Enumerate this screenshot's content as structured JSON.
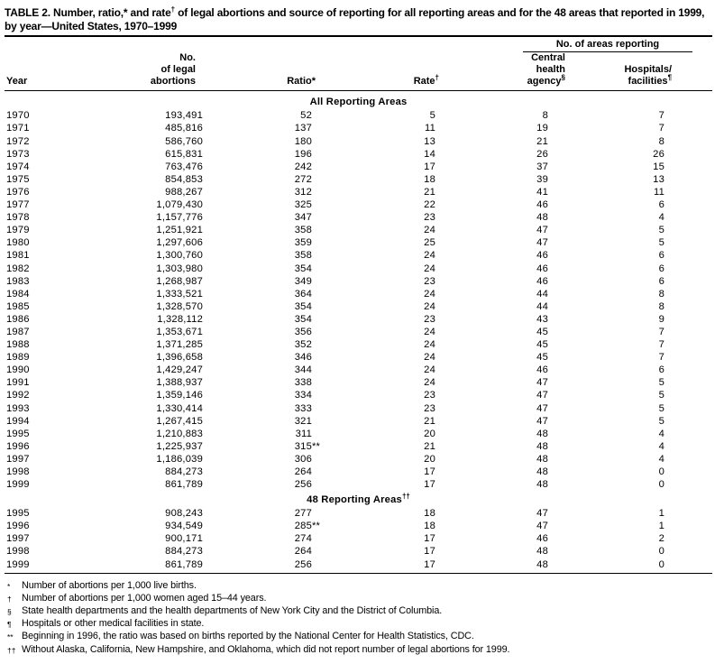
{
  "title": {
    "prefix": "TABLE 2. Number, ratio,* and rate",
    "sup": "†",
    "rest": " of legal abortions and source of reporting for all reporting areas and for the 48 areas that reported in 1999, by year—United States, 1970–1999"
  },
  "headers": {
    "group": "No. of areas reporting",
    "year": "Year",
    "abortions": "No.\nof legal\nabortions",
    "ratio": "Ratio*",
    "rate": "Rate",
    "rate_sup": "†",
    "central": "Central\nhealth\nagency",
    "central_sup": "§",
    "hospitals": "Hospitals/\nfacilities",
    "hospitals_sup": "¶"
  },
  "sections": [
    {
      "title": "All Reporting Areas",
      "sup": "",
      "rows": [
        {
          "year": "1970",
          "abortions": "193,491",
          "ratio": "52",
          "ratio_sup": "",
          "rate": "5",
          "central": "8",
          "hospitals": "7"
        },
        {
          "year": "1971",
          "abortions": "485,816",
          "ratio": "137",
          "ratio_sup": "",
          "rate": "11",
          "central": "19",
          "hospitals": "7"
        },
        {
          "year": "1972",
          "abortions": "586,760",
          "ratio": "180",
          "ratio_sup": "",
          "rate": "13",
          "central": "21",
          "hospitals": "8"
        },
        {
          "year": "1973",
          "abortions": "615,831",
          "ratio": "196",
          "ratio_sup": "",
          "rate": "14",
          "central": "26",
          "hospitals": "26"
        },
        {
          "year": "1974",
          "abortions": "763,476",
          "ratio": "242",
          "ratio_sup": "",
          "rate": "17",
          "central": "37",
          "hospitals": "15"
        },
        {
          "year": "1975",
          "abortions": "854,853",
          "ratio": "272",
          "ratio_sup": "",
          "rate": "18",
          "central": "39",
          "hospitals": "13"
        },
        {
          "year": "1976",
          "abortions": "988,267",
          "ratio": "312",
          "ratio_sup": "",
          "rate": "21",
          "central": "41",
          "hospitals": "11"
        },
        {
          "year": "1977",
          "abortions": "1,079,430",
          "ratio": "325",
          "ratio_sup": "",
          "rate": "22",
          "central": "46",
          "hospitals": "6"
        },
        {
          "year": "1978",
          "abortions": "1,157,776",
          "ratio": "347",
          "ratio_sup": "",
          "rate": "23",
          "central": "48",
          "hospitals": "4"
        },
        {
          "year": "1979",
          "abortions": "1,251,921",
          "ratio": "358",
          "ratio_sup": "",
          "rate": "24",
          "central": "47",
          "hospitals": "5"
        },
        {
          "year": "1980",
          "abortions": "1,297,606",
          "ratio": "359",
          "ratio_sup": "",
          "rate": "25",
          "central": "47",
          "hospitals": "5"
        },
        {
          "year": "1981",
          "abortions": "1,300,760",
          "ratio": "358",
          "ratio_sup": "",
          "rate": "24",
          "central": "46",
          "hospitals": "6"
        },
        {
          "year": "1982",
          "abortions": "1,303,980",
          "ratio": "354",
          "ratio_sup": "",
          "rate": "24",
          "central": "46",
          "hospitals": "6"
        },
        {
          "year": "1983",
          "abortions": "1,268,987",
          "ratio": "349",
          "ratio_sup": "",
          "rate": "23",
          "central": "46",
          "hospitals": "6"
        },
        {
          "year": "1984",
          "abortions": "1,333,521",
          "ratio": "364",
          "ratio_sup": "",
          "rate": "24",
          "central": "44",
          "hospitals": "8"
        },
        {
          "year": "1985",
          "abortions": "1,328,570",
          "ratio": "354",
          "ratio_sup": "",
          "rate": "24",
          "central": "44",
          "hospitals": "8"
        },
        {
          "year": "1986",
          "abortions": "1,328,112",
          "ratio": "354",
          "ratio_sup": "",
          "rate": "23",
          "central": "43",
          "hospitals": "9"
        },
        {
          "year": "1987",
          "abortions": "1,353,671",
          "ratio": "356",
          "ratio_sup": "",
          "rate": "24",
          "central": "45",
          "hospitals": "7"
        },
        {
          "year": "1988",
          "abortions": "1,371,285",
          "ratio": "352",
          "ratio_sup": "",
          "rate": "24",
          "central": "45",
          "hospitals": "7"
        },
        {
          "year": "1989",
          "abortions": "1,396,658",
          "ratio": "346",
          "ratio_sup": "",
          "rate": "24",
          "central": "45",
          "hospitals": "7"
        },
        {
          "year": "1990",
          "abortions": "1,429,247",
          "ratio": "344",
          "ratio_sup": "",
          "rate": "24",
          "central": "46",
          "hospitals": "6"
        },
        {
          "year": "1991",
          "abortions": "1,388,937",
          "ratio": "338",
          "ratio_sup": "",
          "rate": "24",
          "central": "47",
          "hospitals": "5"
        },
        {
          "year": "1992",
          "abortions": "1,359,146",
          "ratio": "334",
          "ratio_sup": "",
          "rate": "23",
          "central": "47",
          "hospitals": "5"
        },
        {
          "year": "1993",
          "abortions": "1,330,414",
          "ratio": "333",
          "ratio_sup": "",
          "rate": "23",
          "central": "47",
          "hospitals": "5"
        },
        {
          "year": "1994",
          "abortions": "1,267,415",
          "ratio": "321",
          "ratio_sup": "",
          "rate": "21",
          "central": "47",
          "hospitals": "5"
        },
        {
          "year": "1995",
          "abortions": "1,210,883",
          "ratio": "311",
          "ratio_sup": "",
          "rate": "20",
          "central": "48",
          "hospitals": "4"
        },
        {
          "year": "1996",
          "abortions": "1,225,937",
          "ratio": "315",
          "ratio_sup": "**",
          "rate": "21",
          "central": "48",
          "hospitals": "4"
        },
        {
          "year": "1997",
          "abortions": "1,186,039",
          "ratio": "306",
          "ratio_sup": "",
          "rate": "20",
          "central": "48",
          "hospitals": "4"
        },
        {
          "year": "1998",
          "abortions": "884,273",
          "ratio": "264",
          "ratio_sup": "",
          "rate": "17",
          "central": "48",
          "hospitals": "0"
        },
        {
          "year": "1999",
          "abortions": "861,789",
          "ratio": "256",
          "ratio_sup": "",
          "rate": "17",
          "central": "48",
          "hospitals": "0"
        }
      ]
    },
    {
      "title": "48 Reporting Areas",
      "sup": "††",
      "rows": [
        {
          "year": "1995",
          "abortions": "908,243",
          "ratio": "277",
          "ratio_sup": "",
          "rate": "18",
          "central": "47",
          "hospitals": "1"
        },
        {
          "year": "1996",
          "abortions": "934,549",
          "ratio": "285",
          "ratio_sup": "**",
          "rate": "18",
          "central": "47",
          "hospitals": "1"
        },
        {
          "year": "1997",
          "abortions": "900,171",
          "ratio": "274",
          "ratio_sup": "",
          "rate": "17",
          "central": "46",
          "hospitals": "2"
        },
        {
          "year": "1998",
          "abortions": "884,273",
          "ratio": "264",
          "ratio_sup": "",
          "rate": "17",
          "central": "48",
          "hospitals": "0"
        },
        {
          "year": "1999",
          "abortions": "861,789",
          "ratio": "256",
          "ratio_sup": "",
          "rate": "17",
          "central": "48",
          "hospitals": "0"
        }
      ]
    }
  ],
  "footnotes": [
    {
      "sym": "*",
      "text": "Number of abortions per 1,000 live births."
    },
    {
      "sym": "†",
      "text": "Number of abortions per 1,000 women aged 15–44 years."
    },
    {
      "sym": "§",
      "text": "State health departments and the health departments of New York City and the District of Columbia."
    },
    {
      "sym": "¶",
      "text": "Hospitals or other medical facilities in state."
    },
    {
      "sym": "**",
      "text": "Beginning in 1996, the ratio was based on births reported by the National Center for Health Statistics, CDC."
    },
    {
      "sym": "††",
      "text": "Without Alaska, California, New Hampshire, and Oklahoma, which did not report number of legal abortions for 1999."
    }
  ]
}
